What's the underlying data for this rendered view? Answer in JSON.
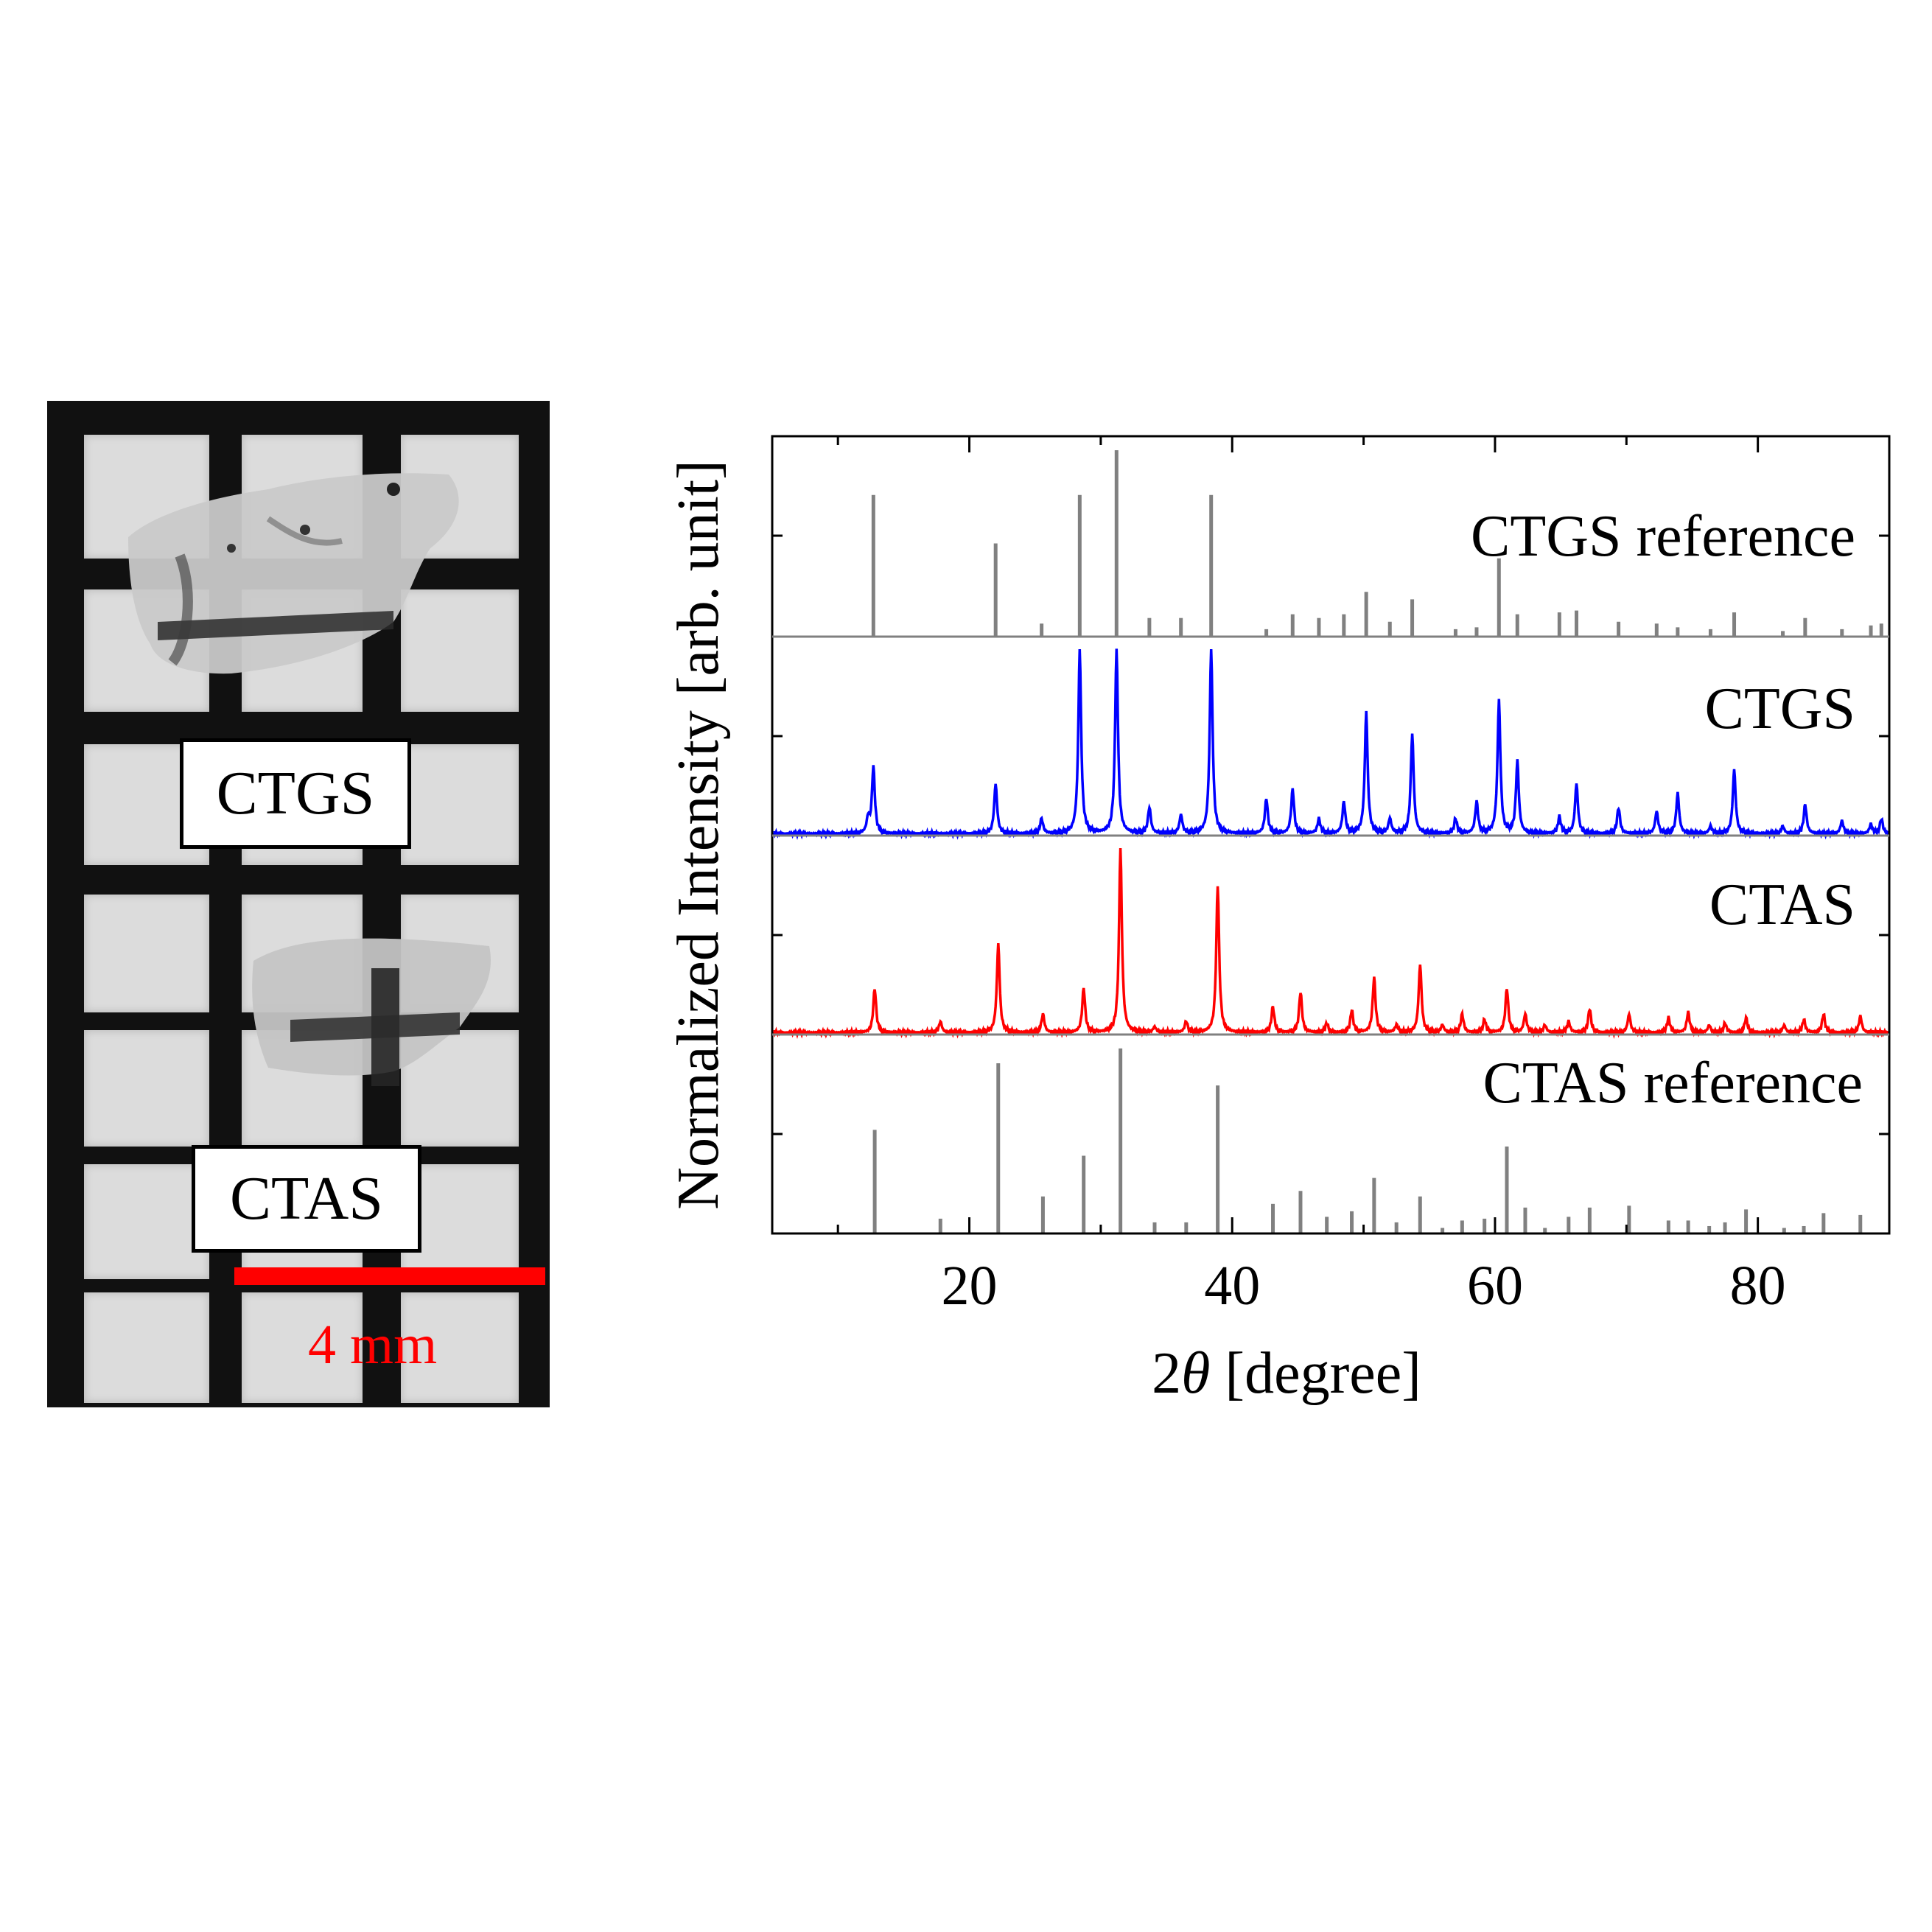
{
  "photo": {
    "labels": {
      "ctgs": "CTGS",
      "ctas": "CTAS"
    },
    "scale_bar": {
      "text": "4 mm",
      "color": "#ff0000"
    }
  },
  "chart_data": {
    "type": "line",
    "title": "",
    "xlabel_prefix": "2",
    "xlabel_symbol": "θ",
    "xlabel_suffix": " [degree]",
    "ylabel": "Normalized Intensity [arb. unit]",
    "xlim": [
      5,
      90
    ],
    "x_ticks": [
      20,
      40,
      60,
      80
    ],
    "x_minor_ticks": [
      10,
      30,
      50,
      70,
      90
    ],
    "grid": false,
    "panels": [
      {
        "name": "CTGS reference",
        "label": "CTGS reference",
        "kind": "sticks",
        "color": "#808080",
        "peaks": [
          [
            12.7,
            0.76
          ],
          [
            22.0,
            0.5
          ],
          [
            25.5,
            0.07
          ],
          [
            28.4,
            0.76
          ],
          [
            31.2,
            1.0
          ],
          [
            33.7,
            0.1
          ],
          [
            36.1,
            0.1
          ],
          [
            38.4,
            0.76
          ],
          [
            42.6,
            0.04
          ],
          [
            44.6,
            0.12
          ],
          [
            46.6,
            0.1
          ],
          [
            48.5,
            0.12
          ],
          [
            50.2,
            0.24
          ],
          [
            52.0,
            0.08
          ],
          [
            53.7,
            0.2
          ],
          [
            57.0,
            0.04
          ],
          [
            58.6,
            0.05
          ],
          [
            60.3,
            0.42
          ],
          [
            61.7,
            0.12
          ],
          [
            64.9,
            0.13
          ],
          [
            66.2,
            0.14
          ],
          [
            69.4,
            0.08
          ],
          [
            72.3,
            0.07
          ],
          [
            73.9,
            0.05
          ],
          [
            76.4,
            0.04
          ],
          [
            78.2,
            0.13
          ],
          [
            81.9,
            0.03
          ],
          [
            83.6,
            0.1
          ],
          [
            86.4,
            0.04
          ],
          [
            88.6,
            0.06
          ],
          [
            89.4,
            0.07
          ]
        ]
      },
      {
        "name": "CTGS",
        "label": "CTGS",
        "kind": "profile",
        "color": "#0000ff",
        "peaks": [
          [
            12.3,
            0.08
          ],
          [
            12.7,
            0.36
          ],
          [
            22.0,
            0.27
          ],
          [
            25.5,
            0.08
          ],
          [
            28.4,
            1.0
          ],
          [
            31.2,
            1.0
          ],
          [
            33.7,
            0.14
          ],
          [
            36.1,
            0.1
          ],
          [
            38.4,
            1.0
          ],
          [
            42.6,
            0.19
          ],
          [
            44.6,
            0.24
          ],
          [
            46.6,
            0.08
          ],
          [
            48.5,
            0.17
          ],
          [
            50.2,
            0.66
          ],
          [
            52.0,
            0.08
          ],
          [
            53.7,
            0.54
          ],
          [
            57.0,
            0.08
          ],
          [
            58.6,
            0.17
          ],
          [
            60.3,
            0.72
          ],
          [
            61.7,
            0.39
          ],
          [
            64.9,
            0.09
          ],
          [
            66.2,
            0.27
          ],
          [
            69.4,
            0.14
          ],
          [
            72.3,
            0.12
          ],
          [
            73.9,
            0.22
          ],
          [
            76.4,
            0.04
          ],
          [
            78.2,
            0.35
          ],
          [
            81.9,
            0.04
          ],
          [
            83.6,
            0.16
          ],
          [
            86.4,
            0.07
          ],
          [
            88.6,
            0.05
          ],
          [
            89.4,
            0.08
          ]
        ]
      },
      {
        "name": "CTAS",
        "label": "CTAS",
        "kind": "profile",
        "color": "#ff0000",
        "peaks": [
          [
            12.8,
            0.24
          ],
          [
            17.8,
            0.06
          ],
          [
            22.2,
            0.48
          ],
          [
            25.6,
            0.1
          ],
          [
            28.7,
            0.24
          ],
          [
            31.5,
            1.0
          ],
          [
            34.1,
            0.03
          ],
          [
            36.5,
            0.06
          ],
          [
            38.9,
            0.8
          ],
          [
            43.1,
            0.14
          ],
          [
            45.2,
            0.22
          ],
          [
            47.2,
            0.05
          ],
          [
            49.1,
            0.12
          ],
          [
            50.8,
            0.3
          ],
          [
            52.5,
            0.04
          ],
          [
            54.3,
            0.37
          ],
          [
            56.0,
            0.04
          ],
          [
            57.5,
            0.1
          ],
          [
            59.2,
            0.07
          ],
          [
            60.9,
            0.24
          ],
          [
            62.3,
            0.1
          ],
          [
            63.8,
            0.04
          ],
          [
            65.6,
            0.06
          ],
          [
            67.2,
            0.13
          ],
          [
            70.2,
            0.1
          ],
          [
            73.2,
            0.08
          ],
          [
            74.7,
            0.11
          ],
          [
            76.3,
            0.04
          ],
          [
            77.5,
            0.05
          ],
          [
            79.1,
            0.08
          ],
          [
            82.0,
            0.04
          ],
          [
            83.5,
            0.07
          ],
          [
            85.0,
            0.1
          ],
          [
            87.8,
            0.09
          ]
        ]
      },
      {
        "name": "CTAS reference",
        "label": "CTAS reference",
        "kind": "sticks",
        "color": "#808080",
        "peaks": [
          [
            12.8,
            0.56
          ],
          [
            17.8,
            0.08
          ],
          [
            22.2,
            0.92
          ],
          [
            25.6,
            0.2
          ],
          [
            28.7,
            0.42
          ],
          [
            31.5,
            1.0
          ],
          [
            34.1,
            0.06
          ],
          [
            36.5,
            0.06
          ],
          [
            38.9,
            0.8
          ],
          [
            43.1,
            0.16
          ],
          [
            45.2,
            0.23
          ],
          [
            47.2,
            0.09
          ],
          [
            49.1,
            0.12
          ],
          [
            50.8,
            0.3
          ],
          [
            52.5,
            0.06
          ],
          [
            54.3,
            0.2
          ],
          [
            56.0,
            0.03
          ],
          [
            57.5,
            0.07
          ],
          [
            59.2,
            0.08
          ],
          [
            60.9,
            0.47
          ],
          [
            62.3,
            0.14
          ],
          [
            63.8,
            0.03
          ],
          [
            65.6,
            0.09
          ],
          [
            67.2,
            0.14
          ],
          [
            70.2,
            0.15
          ],
          [
            73.2,
            0.07
          ],
          [
            74.7,
            0.07
          ],
          [
            76.3,
            0.04
          ],
          [
            77.5,
            0.06
          ],
          [
            79.1,
            0.13
          ],
          [
            82.0,
            0.03
          ],
          [
            83.5,
            0.04
          ],
          [
            85.0,
            0.11
          ],
          [
            87.8,
            0.1
          ]
        ]
      }
    ]
  }
}
